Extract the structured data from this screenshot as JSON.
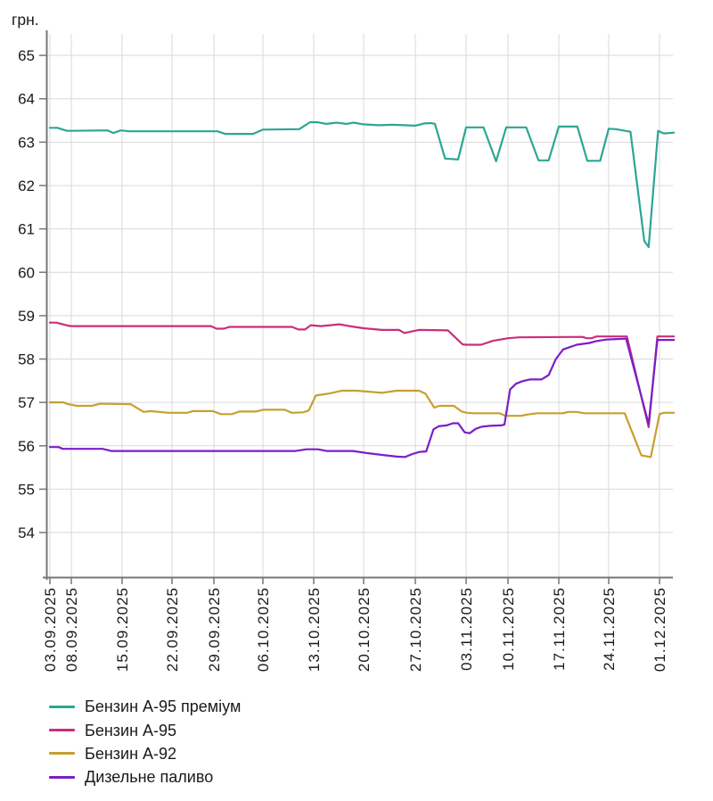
{
  "chart_data": {
    "type": "line",
    "title": "",
    "ylabel": "грн.",
    "xlabel": "",
    "ylim": [
      54,
      65
    ],
    "grid": true,
    "legend_position": "bottom-left",
    "axis_color": "#777777",
    "grid_color": "#d9d9d9",
    "y_ticks": [
      54,
      55,
      56,
      57,
      58,
      59,
      60,
      61,
      62,
      63,
      64,
      65
    ],
    "x_tick_labels": [
      "03.09.2025",
      "08.09.2025",
      "15.09.2025",
      "22.09.2025",
      "29.09.2025",
      "06.10.2025",
      "13.10.2025",
      "20.10.2025",
      "27.10.2025",
      "03.11.2025",
      "10.11.2025",
      "17.11.2025",
      "24.11.2025",
      "01.12.2025"
    ],
    "x_tick_days": [
      0,
      5,
      12,
      19,
      26,
      33,
      40,
      47,
      54,
      61,
      68,
      75,
      82,
      89
    ],
    "series": [
      {
        "name": "Бензин А-95 преміум",
        "color": "#2ba695",
        "points": [
          [
            0,
            63.33
          ],
          [
            1.8,
            63.33
          ],
          [
            2.4,
            63.31
          ],
          [
            4,
            63.26
          ],
          [
            10,
            63.27
          ],
          [
            10.8,
            63.21
          ],
          [
            11.8,
            63.27
          ],
          [
            13,
            63.25
          ],
          [
            26.5,
            63.25
          ],
          [
            27.6,
            63.19
          ],
          [
            31.6,
            63.19
          ],
          [
            33,
            63.29
          ],
          [
            38,
            63.3
          ],
          [
            39.5,
            63.46
          ],
          [
            40.5,
            63.46
          ],
          [
            41.8,
            63.42
          ],
          [
            43.2,
            63.45
          ],
          [
            44.6,
            63.42
          ],
          [
            45.6,
            63.45
          ],
          [
            47,
            63.41
          ],
          [
            49,
            63.39
          ],
          [
            51,
            63.4
          ],
          [
            54,
            63.38
          ],
          [
            55.2,
            63.43
          ],
          [
            56.2,
            63.44
          ],
          [
            56.7,
            63.42
          ],
          [
            58.1,
            62.62
          ],
          [
            59.9,
            62.6
          ],
          [
            61,
            63.34
          ],
          [
            63.9,
            63.34
          ],
          [
            66,
            62.56
          ],
          [
            67.7,
            63.34
          ],
          [
            70.5,
            63.34
          ],
          [
            72.2,
            62.58
          ],
          [
            73.6,
            62.58
          ],
          [
            75,
            63.36
          ],
          [
            77.6,
            63.36
          ],
          [
            79,
            62.57
          ],
          [
            80.8,
            62.57
          ],
          [
            82,
            63.31
          ],
          [
            83,
            63.3
          ],
          [
            85,
            63.24
          ],
          [
            86.9,
            60.72
          ],
          [
            87.5,
            60.58
          ],
          [
            88.8,
            63.26
          ],
          [
            89.6,
            63.2
          ],
          [
            91,
            63.22
          ]
        ]
      },
      {
        "name": "Бензин А-95",
        "color": "#cb2e7b",
        "points": [
          [
            0,
            58.84
          ],
          [
            1.5,
            58.84
          ],
          [
            3,
            58.8
          ],
          [
            4.2,
            58.77
          ],
          [
            5,
            58.76
          ],
          [
            25.5,
            58.76
          ],
          [
            26.4,
            58.7
          ],
          [
            27.4,
            58.7
          ],
          [
            28.2,
            58.74
          ],
          [
            37,
            58.74
          ],
          [
            37.9,
            58.68
          ],
          [
            38.8,
            58.68
          ],
          [
            39.6,
            58.78
          ],
          [
            41,
            58.76
          ],
          [
            43.6,
            58.8
          ],
          [
            45,
            58.76
          ],
          [
            47,
            58.71
          ],
          [
            49.5,
            58.67
          ],
          [
            51.8,
            58.67
          ],
          [
            52.5,
            58.6
          ],
          [
            54.5,
            58.67
          ],
          [
            58.5,
            58.66
          ],
          [
            60.5,
            58.34
          ],
          [
            61,
            58.33
          ],
          [
            63.5,
            58.33
          ],
          [
            65.5,
            58.42
          ],
          [
            68,
            58.48
          ],
          [
            69.5,
            58.5
          ],
          [
            78.3,
            58.51
          ],
          [
            78.9,
            58.48
          ],
          [
            79.6,
            58.48
          ],
          [
            80.3,
            58.52
          ],
          [
            84.5,
            58.52
          ],
          [
            87.5,
            56.43
          ],
          [
            88.7,
            58.52
          ],
          [
            91,
            58.52
          ]
        ]
      },
      {
        "name": "Бензин А-92",
        "color": "#c6a02f",
        "points": [
          [
            0,
            57.0
          ],
          [
            3.2,
            57.0
          ],
          [
            4.2,
            56.96
          ],
          [
            5.8,
            56.92
          ],
          [
            7.8,
            56.92
          ],
          [
            9,
            56.97
          ],
          [
            13.2,
            56.96
          ],
          [
            15,
            56.78
          ],
          [
            16,
            56.8
          ],
          [
            18.5,
            56.76
          ],
          [
            21.5,
            56.76
          ],
          [
            22.5,
            56.8
          ],
          [
            25.8,
            56.8
          ],
          [
            27,
            56.73
          ],
          [
            28.6,
            56.73
          ],
          [
            29.6,
            56.79
          ],
          [
            32,
            56.79
          ],
          [
            33,
            56.83
          ],
          [
            36,
            56.83
          ],
          [
            37,
            56.76
          ],
          [
            38.5,
            56.77
          ],
          [
            39.3,
            56.81
          ],
          [
            40.3,
            57.16
          ],
          [
            42,
            57.2
          ],
          [
            44,
            57.27
          ],
          [
            46,
            57.27
          ],
          [
            47.5,
            57.25
          ],
          [
            49.5,
            57.22
          ],
          [
            51.5,
            57.27
          ],
          [
            54.5,
            57.27
          ],
          [
            55.4,
            57.2
          ],
          [
            56.6,
            56.88
          ],
          [
            57.3,
            56.92
          ],
          [
            59.3,
            56.92
          ],
          [
            60.4,
            56.79
          ],
          [
            61.2,
            56.76
          ],
          [
            62.3,
            56.75
          ],
          [
            66.6,
            56.75
          ],
          [
            67.6,
            56.69
          ],
          [
            69.8,
            56.69
          ],
          [
            70.6,
            56.72
          ],
          [
            72,
            56.75
          ],
          [
            75.6,
            56.75
          ],
          [
            76.3,
            56.78
          ],
          [
            77.5,
            56.78
          ],
          [
            78.6,
            56.75
          ],
          [
            84.2,
            56.75
          ],
          [
            86.5,
            55.78
          ],
          [
            87.8,
            55.74
          ],
          [
            89,
            56.73
          ],
          [
            89.6,
            56.76
          ],
          [
            91,
            56.76
          ]
        ]
      },
      {
        "name": "Дизельне паливо",
        "color": "#7a1ec9",
        "points": [
          [
            0,
            55.97
          ],
          [
            2,
            55.97
          ],
          [
            3,
            55.93
          ],
          [
            9.3,
            55.93
          ],
          [
            10.5,
            55.88
          ],
          [
            37.5,
            55.88
          ],
          [
            39,
            55.92
          ],
          [
            40.6,
            55.92
          ],
          [
            41.8,
            55.88
          ],
          [
            45.5,
            55.88
          ],
          [
            47.5,
            55.83
          ],
          [
            50,
            55.78
          ],
          [
            51.5,
            55.75
          ],
          [
            52.6,
            55.74
          ],
          [
            53.6,
            55.81
          ],
          [
            54.6,
            55.86
          ],
          [
            55.5,
            55.87
          ],
          [
            56.5,
            56.38
          ],
          [
            57.2,
            56.45
          ],
          [
            58.3,
            56.47
          ],
          [
            59.2,
            56.52
          ],
          [
            59.9,
            56.52
          ],
          [
            60.8,
            56.31
          ],
          [
            61.6,
            56.29
          ],
          [
            62.6,
            56.39
          ],
          [
            63.6,
            56.44
          ],
          [
            65,
            56.46
          ],
          [
            66.9,
            56.47
          ],
          [
            67.4,
            56.49
          ],
          [
            68.3,
            57.3
          ],
          [
            69.1,
            57.43
          ],
          [
            70,
            57.49
          ],
          [
            71,
            57.53
          ],
          [
            72.6,
            57.53
          ],
          [
            73.6,
            57.63
          ],
          [
            74.6,
            58.0
          ],
          [
            75.6,
            58.22
          ],
          [
            77.5,
            58.33
          ],
          [
            79.3,
            58.37
          ],
          [
            80.2,
            58.41
          ],
          [
            81.7,
            58.45
          ],
          [
            84.4,
            58.47
          ],
          [
            87.5,
            56.5
          ],
          [
            88.7,
            58.44
          ],
          [
            91,
            58.44
          ]
        ]
      }
    ]
  }
}
